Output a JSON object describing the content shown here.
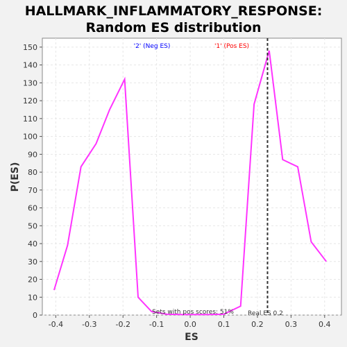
{
  "chart_data": {
    "type": "line",
    "title_line1": "HALLMARK_INFLAMMATORY_RESPONSE:",
    "title_line2": "Random ES distribution",
    "xlabel": "ES",
    "ylabel": "P(ES)",
    "xlim": [
      -0.44,
      0.45
    ],
    "ylim": [
      0,
      155
    ],
    "xticks": [
      -0.4,
      -0.3,
      -0.2,
      -0.1,
      0.0,
      0.1,
      0.2,
      0.3,
      0.4
    ],
    "xtick_labels": [
      "-0.4",
      "-0.3",
      "-0.2",
      "-0.1",
      "0.0",
      "0.1",
      "0.2",
      "0.3",
      "0.4"
    ],
    "yticks": [
      0,
      10,
      20,
      30,
      40,
      50,
      60,
      70,
      80,
      90,
      100,
      110,
      120,
      130,
      140,
      150
    ],
    "ytick_labels": [
      "0",
      "10",
      "20",
      "30",
      "40",
      "50",
      "60",
      "70",
      "80",
      "90",
      "100",
      "110",
      "120",
      "130",
      "140",
      "150"
    ],
    "grid": true,
    "series": [
      {
        "color": "#ff33ff",
        "x": [
          -0.405,
          -0.365,
          -0.325,
          -0.28,
          -0.24,
          -0.195,
          -0.155,
          -0.115,
          -0.07,
          -0.03,
          0.01,
          0.055,
          0.1,
          0.15,
          0.19,
          0.235,
          0.275,
          0.32,
          0.36,
          0.405
        ],
        "y": [
          14,
          39,
          83,
          96,
          115,
          132,
          10,
          2,
          0.5,
          0.3,
          0.3,
          0.3,
          0.5,
          5,
          118,
          148,
          87,
          83,
          41,
          30
        ]
      }
    ],
    "real_es": {
      "x": 0.23,
      "label": "Real ES 0.2",
      "color": "#333333"
    },
    "neg_label": {
      "text": "'2' (Neg ES)",
      "color": "#0000ff"
    },
    "pos_label": {
      "text": "'1' (Pos ES)",
      "color": "#ff0000"
    },
    "footer_text": "Sets with pos scores: 51%"
  }
}
